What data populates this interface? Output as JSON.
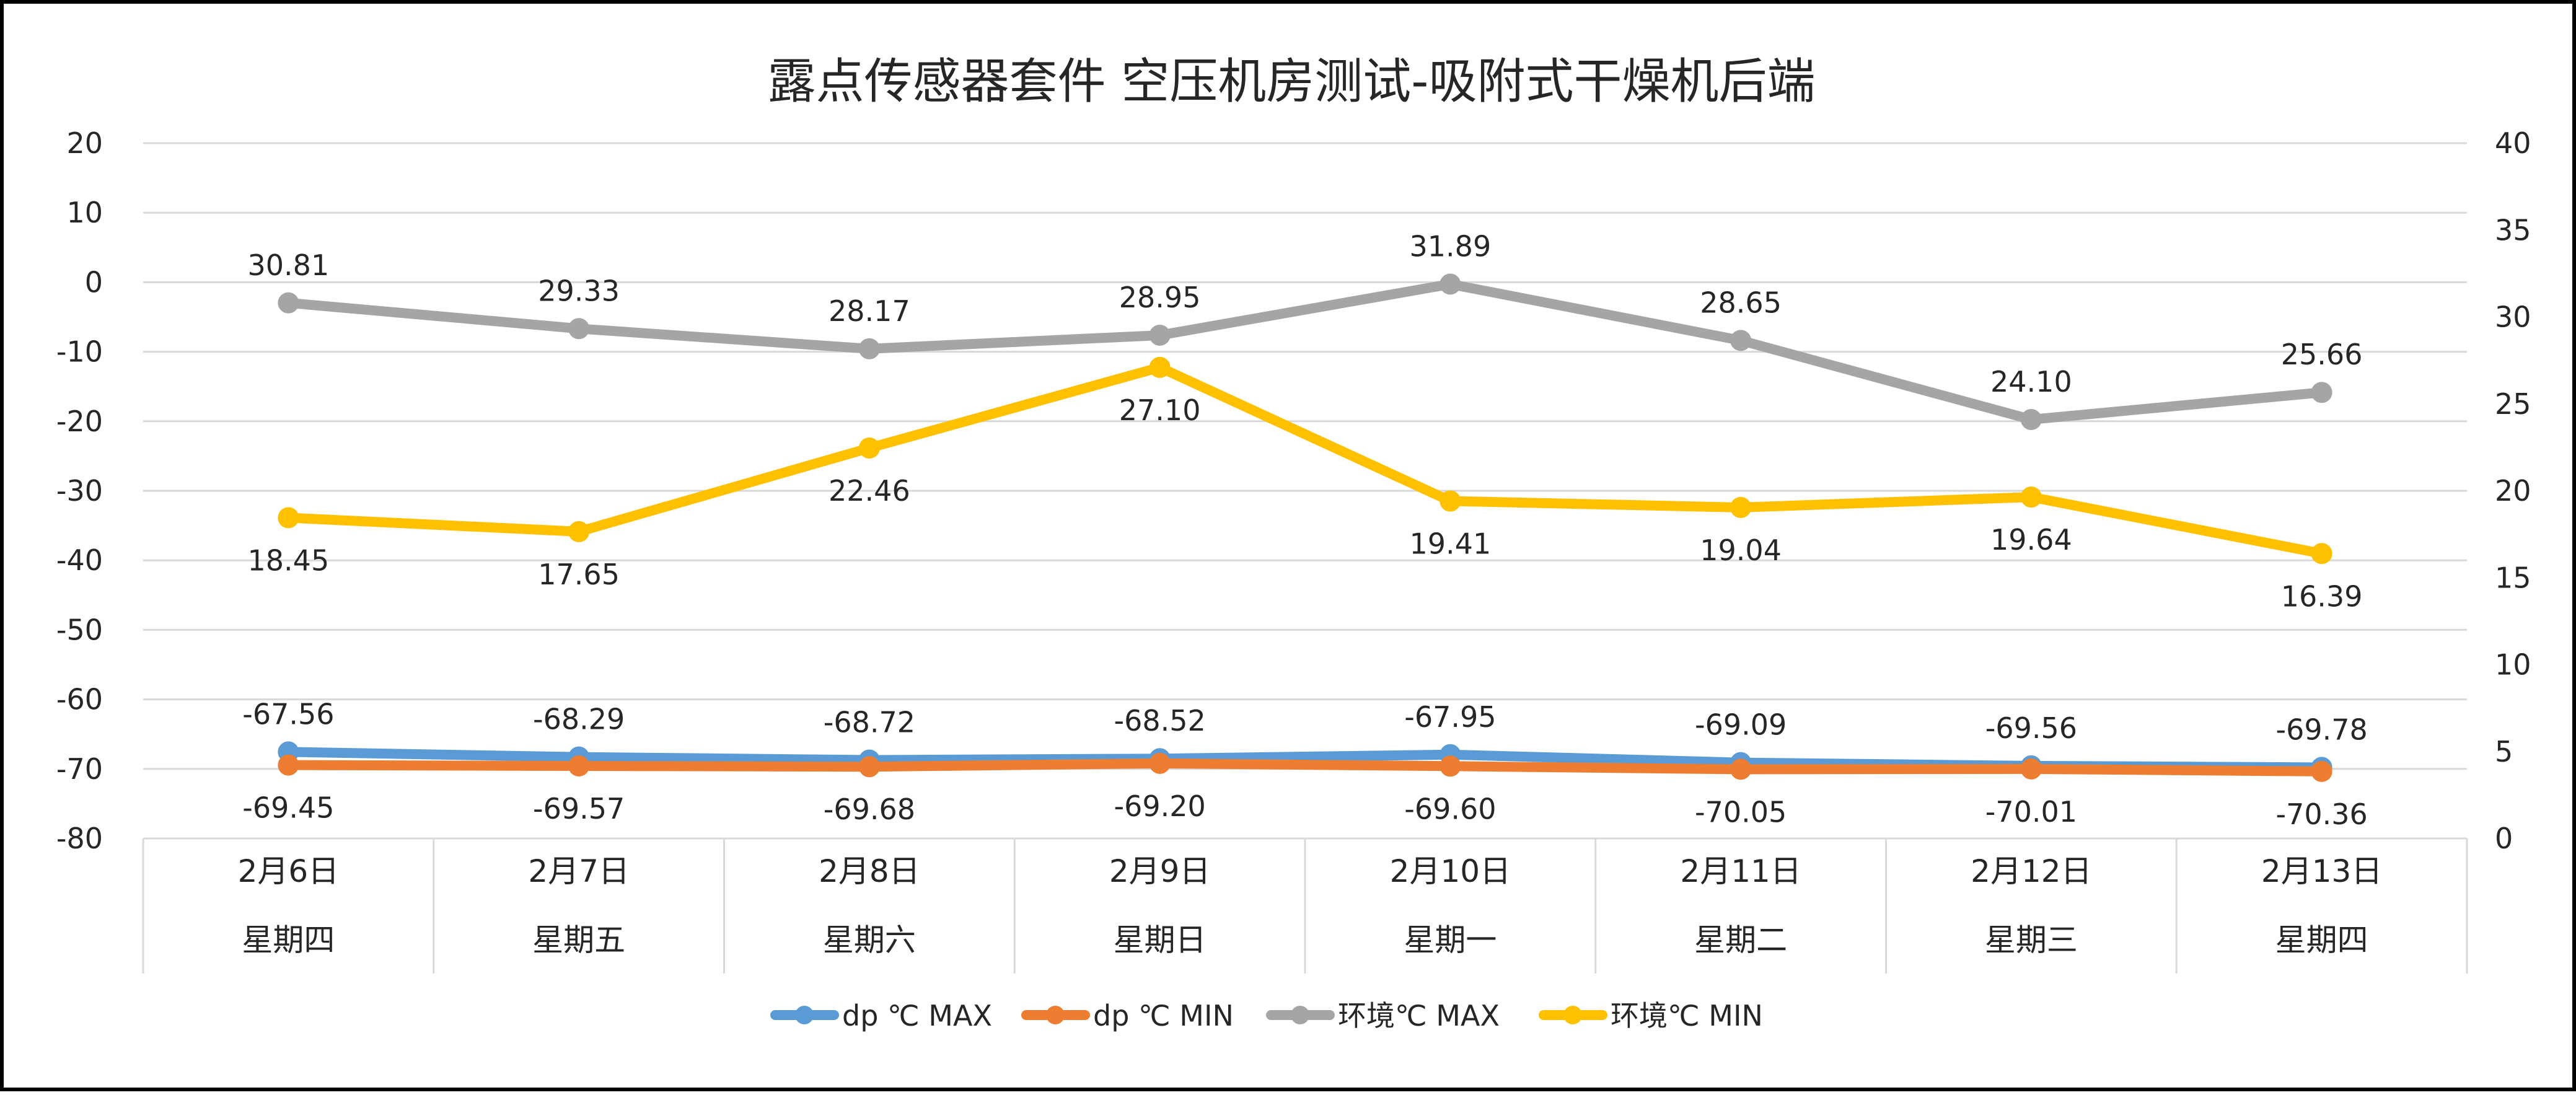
{
  "chart_data": {
    "type": "line",
    "title": "露点传感器套件  空压机房测试-吸附式干燥机后端",
    "categories": [
      {
        "date": "2月6日",
        "weekday": "星期四"
      },
      {
        "date": "2月7日",
        "weekday": "星期五"
      },
      {
        "date": "2月8日",
        "weekday": "星期六"
      },
      {
        "date": "2月9日",
        "weekday": "星期日"
      },
      {
        "date": "2月10日",
        "weekday": "星期一"
      },
      {
        "date": "2月11日",
        "weekday": "星期二"
      },
      {
        "date": "2月12日",
        "weekday": "星期三"
      },
      {
        "date": "2月13日",
        "weekday": "星期四"
      }
    ],
    "y_left": {
      "min": -80,
      "max": 20,
      "step": 10,
      "ticks": [
        "20",
        "10",
        "0",
        "-10",
        "-20",
        "-30",
        "-40",
        "-50",
        "-60",
        "-70",
        "-80"
      ]
    },
    "y_right": {
      "min": 0,
      "max": 40,
      "step": 5,
      "ticks": [
        "40",
        "35",
        "30",
        "25",
        "20",
        "15",
        "10",
        "5",
        "0"
      ]
    },
    "grid": true,
    "legend_position": "bottom",
    "series": [
      {
        "name": "dp ℃ MAX",
        "axis": "left",
        "color": "#5B9BD5",
        "label_position": "above",
        "values": [
          -67.56,
          -68.29,
          -68.72,
          -68.52,
          -67.95,
          -69.09,
          -69.56,
          -69.78
        ],
        "labels": [
          "-67.56",
          "-68.29",
          "-68.72",
          "-68.52",
          "-67.95",
          "-69.09",
          "-69.56",
          "-69.78"
        ]
      },
      {
        "name": "dp ℃ MIN",
        "axis": "left",
        "color": "#ED7D31",
        "label_position": "below",
        "values": [
          -69.45,
          -69.57,
          -69.68,
          -69.2,
          -69.6,
          -70.05,
          -70.01,
          -70.36
        ],
        "labels": [
          "-69.45",
          "-69.57",
          "-69.68",
          "-69.20",
          "-69.60",
          "-70.05",
          "-70.01",
          "-70.36"
        ]
      },
      {
        "name": "环境℃ MAX",
        "axis": "right",
        "color": "#A5A5A5",
        "label_position": "above",
        "values": [
          30.81,
          29.33,
          28.17,
          28.95,
          31.89,
          28.65,
          24.1,
          25.66
        ],
        "labels": [
          "30.81",
          "29.33",
          "28.17",
          "28.95",
          "31.89",
          "28.65",
          "24.10",
          "25.66"
        ]
      },
      {
        "name": "环境℃ MIN",
        "axis": "right",
        "color": "#FFC000",
        "label_position": "below",
        "values": [
          18.45,
          17.65,
          22.46,
          27.1,
          19.41,
          19.04,
          19.64,
          16.39
        ],
        "labels": [
          "18.45",
          "17.65",
          "22.46",
          "27.10",
          "19.41",
          "19.04",
          "19.64",
          "16.39"
        ]
      }
    ]
  },
  "colors": {
    "grid": "#D9D9D9",
    "text": "#262626",
    "border": "#000000"
  }
}
